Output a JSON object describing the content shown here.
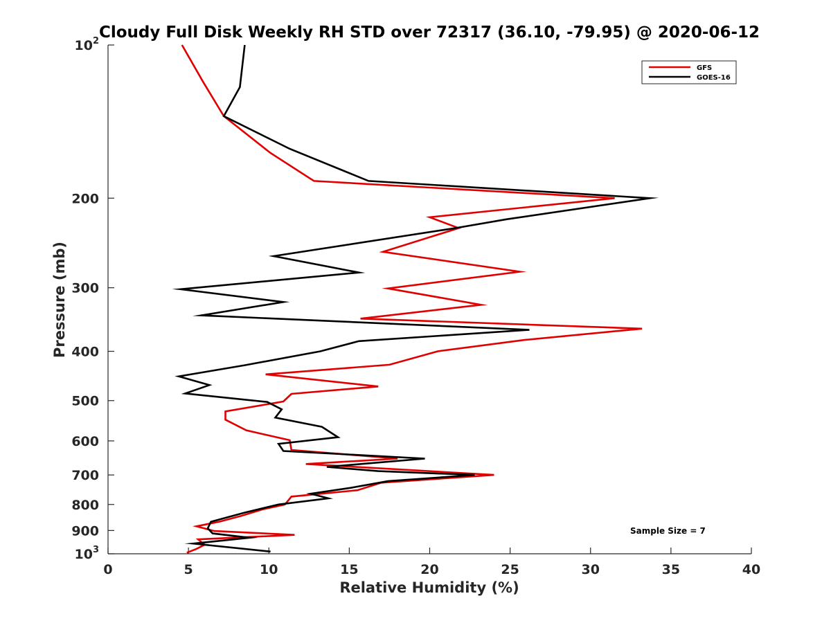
{
  "chart_data": {
    "type": "line",
    "title": "Cloudy Full Disk Weekly RH STD over 72317 (36.10, -79.95) @ 2020-06-12",
    "xlabel": "Relative Humidity (%)",
    "ylabel": "Pressure (mb)",
    "xlim": [
      0,
      40
    ],
    "ylim": [
      100,
      1000
    ],
    "y_scale": "log",
    "y_reversed": true,
    "grid": false,
    "legend_position": "top-right",
    "x_ticks": [
      "0",
      "5",
      "10",
      "15",
      "20",
      "25",
      "30",
      "35",
      "40"
    ],
    "x_tick_values": [
      0,
      5,
      10,
      15,
      20,
      25,
      30,
      35,
      40
    ],
    "y_ticks": [
      {
        "value": 100,
        "base": "10",
        "exp": "2"
      },
      {
        "value": 200,
        "label": "200"
      },
      {
        "value": 300,
        "label": "300"
      },
      {
        "value": 400,
        "label": "400"
      },
      {
        "value": 500,
        "label": "500"
      },
      {
        "value": 600,
        "label": "600"
      },
      {
        "value": 700,
        "label": "700"
      },
      {
        "value": 800,
        "label": "800"
      },
      {
        "value": 900,
        "label": "900"
      },
      {
        "value": 1000,
        "base": "10",
        "exp": "3"
      }
    ],
    "annotation": "Sample Size = 7",
    "series": [
      {
        "name": "GFS",
        "color": "#e00000",
        "points": [
          [
            4.6,
            100
          ],
          [
            5.9,
            118
          ],
          [
            7.2,
            138
          ],
          [
            10.1,
            163
          ],
          [
            12.8,
            185
          ],
          [
            31.5,
            200
          ],
          [
            20.0,
            218
          ],
          [
            21.8,
            229
          ],
          [
            17.1,
            255
          ],
          [
            25.6,
            279
          ],
          [
            17.4,
            301
          ],
          [
            23.2,
            324
          ],
          [
            15.7,
            345
          ],
          [
            33.2,
            361
          ],
          [
            25.9,
            380
          ],
          [
            20.5,
            400
          ],
          [
            17.5,
            425
          ],
          [
            9.8,
            444
          ],
          [
            16.8,
            469
          ],
          [
            11.4,
            485
          ],
          [
            10.9,
            502
          ],
          [
            7.3,
            525
          ],
          [
            7.3,
            545
          ],
          [
            8.6,
            572
          ],
          [
            11.3,
            598
          ],
          [
            11.4,
            625
          ],
          [
            18.0,
            650
          ],
          [
            12.3,
            666
          ],
          [
            24.0,
            700
          ],
          [
            17.0,
            725
          ],
          [
            15.5,
            750
          ],
          [
            11.4,
            772
          ],
          [
            11.0,
            800
          ],
          [
            9.6,
            818
          ],
          [
            8.3,
            842
          ],
          [
            6.9,
            865
          ],
          [
            5.5,
            883
          ],
          [
            6.6,
            902
          ],
          [
            11.6,
            918
          ],
          [
            5.6,
            937
          ],
          [
            6.0,
            960
          ],
          [
            5.5,
            978
          ],
          [
            4.9,
            995
          ]
        ]
      },
      {
        "name": "GOES-16",
        "color": "#000000",
        "points": [
          [
            8.5,
            100
          ],
          [
            8.2,
            121
          ],
          [
            7.2,
            138
          ],
          [
            11.3,
            160
          ],
          [
            16.2,
            185
          ],
          [
            33.7,
            200
          ],
          [
            24.8,
            220
          ],
          [
            21.6,
            229
          ],
          [
            10.3,
            260
          ],
          [
            15.6,
            280
          ],
          [
            4.5,
            302
          ],
          [
            10.9,
            320
          ],
          [
            5.8,
            340
          ],
          [
            26.2,
            363
          ],
          [
            15.6,
            382
          ],
          [
            13.2,
            400
          ],
          [
            8.5,
            426
          ],
          [
            4.4,
            448
          ],
          [
            6.3,
            466
          ],
          [
            4.8,
            484
          ],
          [
            9.9,
            503
          ],
          [
            10.8,
            520
          ],
          [
            10.4,
            540
          ],
          [
            13.3,
            563
          ],
          [
            14.3,
            590
          ],
          [
            10.6,
            608
          ],
          [
            10.9,
            628
          ],
          [
            19.7,
            650
          ],
          [
            13.6,
            675
          ],
          [
            16.8,
            688
          ],
          [
            22.8,
            700
          ],
          [
            17.4,
            720
          ],
          [
            15.1,
            742
          ],
          [
            12.6,
            762
          ],
          [
            13.7,
            778
          ],
          [
            10.6,
            800
          ],
          [
            8.5,
            830
          ],
          [
            6.4,
            865
          ],
          [
            6.2,
            891
          ],
          [
            6.5,
            912
          ],
          [
            8.8,
            930
          ],
          [
            5.3,
            955
          ],
          [
            10.1,
            990
          ]
        ]
      }
    ]
  }
}
